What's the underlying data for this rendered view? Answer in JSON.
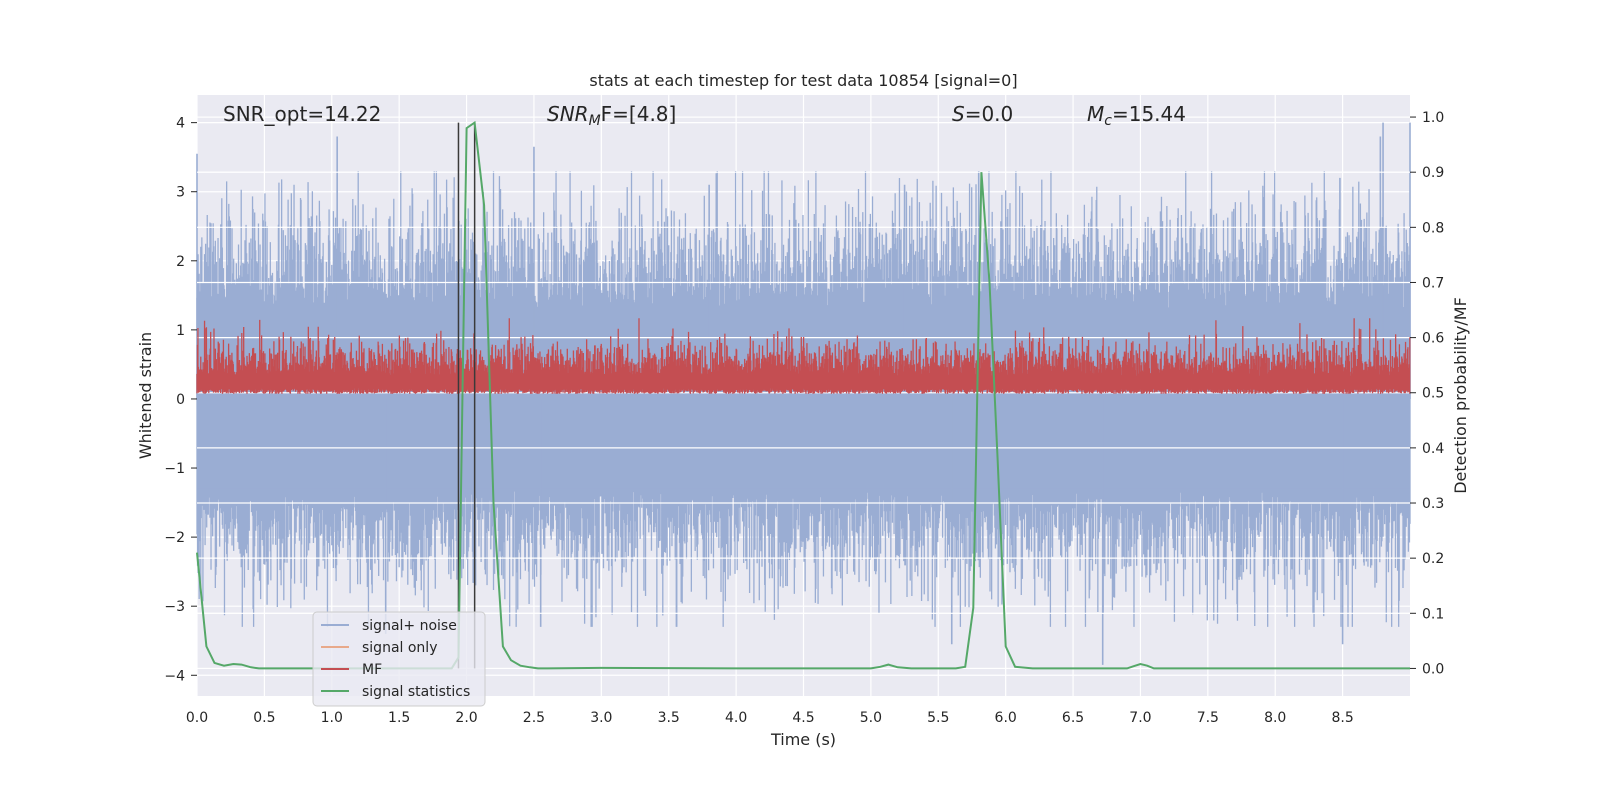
{
  "chart_data": {
    "type": "line",
    "title": "stats at each timestep for test data 10854 [signal=0]",
    "xlabel": "Time (s)",
    "ylabel": "Whitened strain",
    "y2label": "Detection probability/MF",
    "xlim": [
      0.0,
      9.0
    ],
    "ylim": [
      -4.3,
      4.4
    ],
    "y2lim": [
      -0.05,
      1.04
    ],
    "xticks": [
      0.0,
      0.5,
      1.0,
      1.5,
      2.0,
      2.5,
      3.0,
      3.5,
      4.0,
      4.5,
      5.0,
      5.5,
      6.0,
      6.5,
      7.0,
      7.5,
      8.0,
      8.5
    ],
    "xtick_labels": [
      "0.0",
      "0.5",
      "1.0",
      "1.5",
      "2.0",
      "2.5",
      "3.0",
      "3.5",
      "4.0",
      "4.5",
      "5.0",
      "5.5",
      "6.0",
      "6.5",
      "7.0",
      "7.5",
      "8.0",
      "8.5"
    ],
    "yticks": [
      4,
      3,
      2,
      1,
      0,
      -1,
      -2,
      -3,
      -4
    ],
    "ytick_labels": [
      "4",
      "3",
      "2",
      "1",
      "0",
      "−1",
      "−2",
      "−3",
      "−4"
    ],
    "y2ticks": [
      1.0,
      0.9,
      0.8,
      0.7,
      0.6,
      0.5,
      0.4,
      0.3,
      0.2,
      0.1,
      0.0
    ],
    "y2tick_labels": [
      "1.0",
      "0.9",
      "0.8",
      "0.7",
      "0.6",
      "0.5",
      "0.4",
      "0.3",
      "0.2",
      "0.1",
      "0.0"
    ],
    "grid": true,
    "legend_position": "lower-left",
    "colors": {
      "background": "#eaeaf2",
      "grid": "#ffffff",
      "noise": "#9aadd3",
      "signal_only": "#e8a98a",
      "mf": "#c44e52",
      "stat": "#55a868",
      "vlines": "#3a3a3a"
    },
    "annotations": {
      "snr_opt": "SNR_opt=14.22",
      "snr_mf_base": "SNR",
      "snr_mf_sub": "M",
      "snr_mf_rest": "F=[4.8]",
      "s_label_base": "S",
      "s_label_rest": "=0.0",
      "mc_base": "M",
      "mc_sub": "c",
      "mc_rest": "=15.44"
    },
    "vertical_lines_x": [
      1.94,
      2.06
    ],
    "series": [
      {
        "name": "signal+ noise",
        "kind": "noise_band",
        "axis": "left",
        "description_range": [
          -4.0,
          4.0
        ],
        "peaks": [
          {
            "x": 0.0,
            "y": 3.55
          },
          {
            "x": 1.04,
            "y": 3.8
          },
          {
            "x": 2.5,
            "y": 3.65
          },
          {
            "x": 3.8,
            "y": 3.1
          },
          {
            "x": 5.25,
            "y": 3.1
          },
          {
            "x": 5.8,
            "y": 3.3
          },
          {
            "x": 8.48,
            "y": 3.2
          },
          {
            "x": 8.8,
            "y": 4.0
          },
          {
            "x": 9.0,
            "y": 4.0
          },
          {
            "x": 8.78,
            "y": 3.8
          },
          {
            "x": 5.6,
            "y": -3.55
          },
          {
            "x": 6.72,
            "y": -3.85
          },
          {
            "x": 8.5,
            "y": -3.55
          },
          {
            "x": 2.55,
            "y": -3.3
          },
          {
            "x": 1.4,
            "y": -3.4
          }
        ]
      },
      {
        "name": "signal only",
        "kind": "line",
        "axis": "left",
        "x": [],
        "y": []
      },
      {
        "name": "MF",
        "kind": "mf_band",
        "axis": "right",
        "range": [
          0.5,
          0.62
        ]
      },
      {
        "name": "signal statistics",
        "kind": "line",
        "axis": "right",
        "x": [
          0.0,
          0.07,
          0.13,
          0.2,
          0.27,
          0.33,
          0.4,
          0.46,
          0.53,
          0.6,
          0.7,
          1.0,
          1.5,
          1.8,
          1.89,
          1.94,
          1.97,
          2.0,
          2.06,
          2.13,
          2.2,
          2.27,
          2.33,
          2.4,
          2.47,
          2.53,
          2.6,
          3.0,
          4.0,
          5.0,
          5.07,
          5.13,
          5.2,
          5.3,
          5.5,
          5.63,
          5.7,
          5.76,
          5.82,
          5.88,
          5.94,
          6.0,
          6.07,
          6.2,
          6.5,
          6.9,
          6.95,
          7.0,
          7.05,
          7.1,
          7.5,
          8.0,
          8.5,
          9.0
        ],
        "y": [
          0.21,
          0.04,
          0.01,
          0.005,
          0.008,
          0.007,
          0.002,
          0.0,
          0.0,
          0.0,
          0.0,
          0.0,
          0.0,
          0.0,
          0.0,
          0.02,
          0.5,
          0.98,
          0.99,
          0.84,
          0.3,
          0.04,
          0.015,
          0.005,
          0.002,
          0.0,
          0.0,
          0.001,
          0.0,
          0.0,
          0.003,
          0.007,
          0.002,
          0.0,
          0.0,
          0.0,
          0.003,
          0.11,
          0.9,
          0.7,
          0.38,
          0.04,
          0.003,
          0.0,
          0.0,
          0.0,
          0.004,
          0.008,
          0.005,
          0.0,
          0.0,
          0.0,
          0.0,
          0.0
        ]
      }
    ]
  }
}
